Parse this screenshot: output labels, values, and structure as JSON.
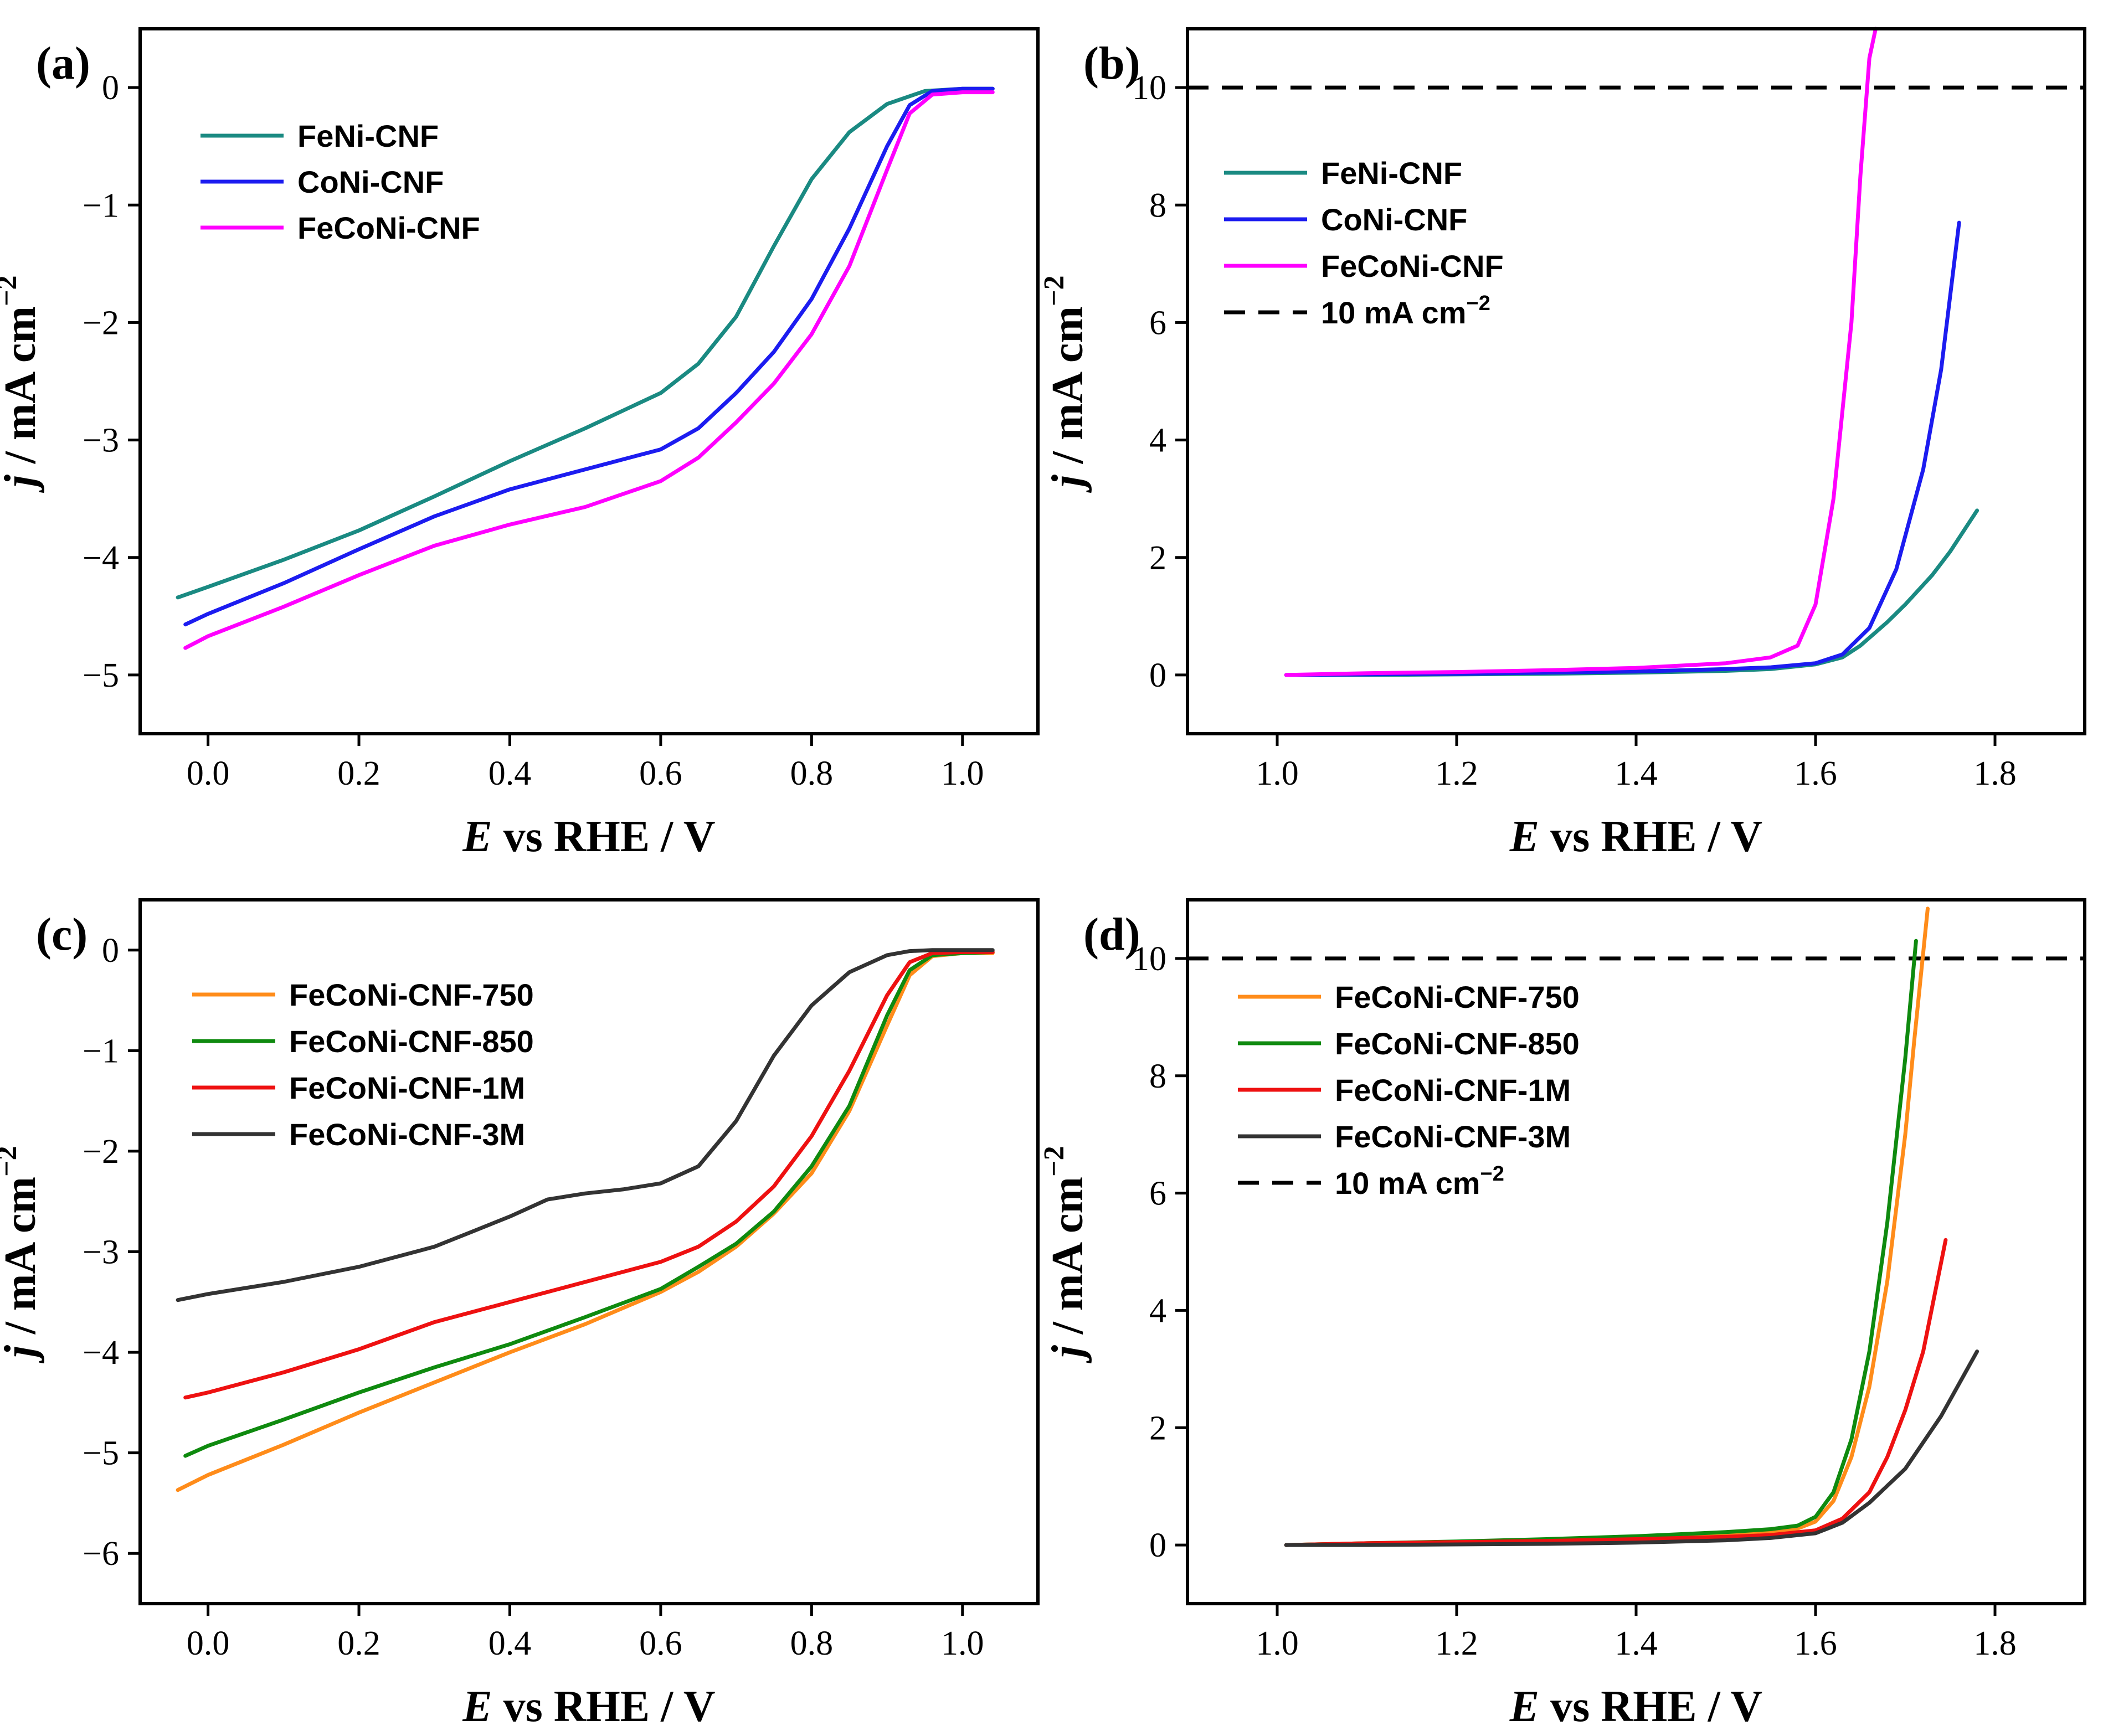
{
  "chart_data": [
    {
      "panel": "(a)",
      "type": "line",
      "xlabel": {
        "italic": "E",
        "rest": " vs RHE / V"
      },
      "ylabel": {
        "italic": "j",
        "rest": " / mA cm",
        "sup": "−2"
      },
      "xlim": [
        -0.09,
        1.1
      ],
      "ylim": [
        -5.5,
        0.5
      ],
      "xticks": [
        0.0,
        0.2,
        0.4,
        0.6,
        0.8,
        1.0
      ],
      "xtick_labels": [
        "0.0",
        "0.2",
        "0.4",
        "0.6",
        "0.8",
        "1.0"
      ],
      "yticks": [
        0,
        -1,
        -2,
        -3,
        -4,
        -5
      ],
      "ytick_labels": [
        "0",
        "−1",
        "−2",
        "−3",
        "−4",
        "−5"
      ],
      "legend_position": "top-left",
      "series": [
        {
          "name": "FeNi-CNF",
          "color": "#1a8a82",
          "x": [
            -0.04,
            0.0,
            0.1,
            0.2,
            0.3,
            0.4,
            0.5,
            0.6,
            0.65,
            0.7,
            0.75,
            0.8,
            0.85,
            0.9,
            0.95,
            1.0,
            1.04
          ],
          "y": [
            -4.34,
            -4.25,
            -4.02,
            -3.77,
            -3.48,
            -3.18,
            -2.9,
            -2.6,
            -2.35,
            -1.95,
            -1.35,
            -0.78,
            -0.38,
            -0.14,
            -0.03,
            -0.01,
            -0.01
          ]
        },
        {
          "name": "CoNi-CNF",
          "color": "#1c1cf0",
          "x": [
            -0.03,
            0.0,
            0.1,
            0.2,
            0.3,
            0.4,
            0.5,
            0.6,
            0.65,
            0.7,
            0.75,
            0.8,
            0.85,
            0.9,
            0.93,
            0.96,
            1.0,
            1.04
          ],
          "y": [
            -4.57,
            -4.48,
            -4.22,
            -3.93,
            -3.65,
            -3.42,
            -3.25,
            -3.08,
            -2.9,
            -2.6,
            -2.25,
            -1.8,
            -1.2,
            -0.5,
            -0.15,
            -0.03,
            -0.01,
            -0.01
          ]
        },
        {
          "name": "FeCoNi-CNF",
          "color": "#ff00ff",
          "x": [
            -0.03,
            0.0,
            0.1,
            0.2,
            0.3,
            0.4,
            0.5,
            0.6,
            0.65,
            0.7,
            0.75,
            0.8,
            0.85,
            0.9,
            0.93,
            0.96,
            1.0,
            1.04
          ],
          "y": [
            -4.77,
            -4.67,
            -4.42,
            -4.15,
            -3.9,
            -3.72,
            -3.57,
            -3.35,
            -3.15,
            -2.85,
            -2.52,
            -2.1,
            -1.52,
            -0.7,
            -0.22,
            -0.06,
            -0.04,
            -0.04
          ]
        }
      ]
    },
    {
      "panel": "(b)",
      "type": "line",
      "xlabel": {
        "italic": "E",
        "rest": " vs RHE / V"
      },
      "ylabel": {
        "italic": "j",
        "rest": " / mA cm",
        "sup": "−2"
      },
      "xlim": [
        0.9,
        1.9
      ],
      "ylim": [
        -1,
        11
      ],
      "xticks": [
        1.0,
        1.2,
        1.4,
        1.6,
        1.8
      ],
      "xtick_labels": [
        "1.0",
        "1.2",
        "1.4",
        "1.6",
        "1.8"
      ],
      "yticks": [
        0,
        2,
        4,
        6,
        8,
        10
      ],
      "ytick_labels": [
        "0",
        "2",
        "4",
        "6",
        "8",
        "10"
      ],
      "legend_position": "top-left",
      "reference": {
        "name": "10 mA cm",
        "sup": "−2",
        "y": 10
      },
      "series": [
        {
          "name": "FeNi-CNF",
          "color": "#1a8a82",
          "x": [
            1.01,
            1.1,
            1.2,
            1.3,
            1.4,
            1.5,
            1.55,
            1.6,
            1.63,
            1.65,
            1.68,
            1.7,
            1.73,
            1.75,
            1.78
          ],
          "y": [
            0.0,
            0.0,
            0.01,
            0.02,
            0.04,
            0.07,
            0.1,
            0.18,
            0.3,
            0.5,
            0.9,
            1.2,
            1.7,
            2.1,
            2.8
          ]
        },
        {
          "name": "CoNi-CNF",
          "color": "#1c1cf0",
          "x": [
            1.01,
            1.1,
            1.2,
            1.3,
            1.4,
            1.5,
            1.55,
            1.6,
            1.63,
            1.66,
            1.69,
            1.72,
            1.74,
            1.76
          ],
          "y": [
            0.0,
            0.01,
            0.02,
            0.04,
            0.06,
            0.1,
            0.13,
            0.2,
            0.35,
            0.8,
            1.8,
            3.5,
            5.2,
            7.7
          ]
        },
        {
          "name": "FeCoNi-CNF",
          "color": "#ff00ff",
          "x": [
            1.01,
            1.1,
            1.2,
            1.3,
            1.4,
            1.5,
            1.55,
            1.58,
            1.6,
            1.62,
            1.64,
            1.65,
            1.66,
            1.667
          ],
          "y": [
            0.0,
            0.03,
            0.05,
            0.08,
            0.12,
            0.2,
            0.3,
            0.5,
            1.2,
            3.0,
            6.0,
            8.5,
            10.5,
            11.0
          ]
        }
      ]
    },
    {
      "panel": "(c)",
      "type": "line",
      "xlabel": {
        "italic": "E",
        "rest": " vs RHE / V"
      },
      "ylabel": {
        "italic": "j",
        "rest": " / mA cm",
        "sup": "−2"
      },
      "xlim": [
        -0.09,
        1.1
      ],
      "ylim": [
        -6.5,
        0.5
      ],
      "xticks": [
        0.0,
        0.2,
        0.4,
        0.6,
        0.8,
        1.0
      ],
      "xtick_labels": [
        "0.0",
        "0.2",
        "0.4",
        "0.6",
        "0.8",
        "1.0"
      ],
      "yticks": [
        0,
        -1,
        -2,
        -3,
        -4,
        -5,
        -6
      ],
      "ytick_labels": [
        "0",
        "−1",
        "−2",
        "−3",
        "−4",
        "−5",
        "−6"
      ],
      "legend_position": "top-left",
      "series": [
        {
          "name": "FeCoNi-CNF-750",
          "color": "#ff8c1a",
          "x": [
            -0.04,
            0.0,
            0.1,
            0.2,
            0.3,
            0.4,
            0.5,
            0.6,
            0.65,
            0.7,
            0.75,
            0.8,
            0.85,
            0.9,
            0.93,
            0.96,
            1.0,
            1.04
          ],
          "y": [
            -5.37,
            -5.22,
            -4.92,
            -4.6,
            -4.3,
            -4.0,
            -3.72,
            -3.4,
            -3.2,
            -2.95,
            -2.62,
            -2.22,
            -1.6,
            -0.75,
            -0.25,
            -0.06,
            -0.03,
            -0.03
          ]
        },
        {
          "name": "FeCoNi-CNF-850",
          "color": "#0f8a0f",
          "x": [
            -0.03,
            0.0,
            0.1,
            0.2,
            0.3,
            0.4,
            0.5,
            0.6,
            0.65,
            0.7,
            0.75,
            0.8,
            0.85,
            0.9,
            0.93,
            0.96,
            1.0,
            1.04
          ],
          "y": [
            -5.03,
            -4.93,
            -4.67,
            -4.4,
            -4.15,
            -3.92,
            -3.65,
            -3.37,
            -3.15,
            -2.92,
            -2.6,
            -2.15,
            -1.55,
            -0.65,
            -0.2,
            -0.05,
            -0.03,
            -0.02
          ]
        },
        {
          "name": "FeCoNi-CNF-1M",
          "color": "#ee1111",
          "x": [
            -0.03,
            0.0,
            0.1,
            0.2,
            0.3,
            0.4,
            0.5,
            0.6,
            0.65,
            0.7,
            0.75,
            0.8,
            0.85,
            0.9,
            0.93,
            0.96,
            1.0,
            1.04
          ],
          "y": [
            -4.45,
            -4.4,
            -4.2,
            -3.97,
            -3.7,
            -3.5,
            -3.3,
            -3.1,
            -2.95,
            -2.7,
            -2.35,
            -1.85,
            -1.2,
            -0.45,
            -0.12,
            -0.03,
            -0.02,
            -0.02
          ]
        },
        {
          "name": "FeCoNi-CNF-3M",
          "color": "#333333",
          "x": [
            -0.04,
            0.0,
            0.1,
            0.2,
            0.3,
            0.35,
            0.4,
            0.45,
            0.5,
            0.55,
            0.6,
            0.65,
            0.7,
            0.75,
            0.8,
            0.85,
            0.9,
            0.93,
            0.96,
            1.0,
            1.04
          ],
          "y": [
            -3.48,
            -3.42,
            -3.3,
            -3.15,
            -2.95,
            -2.8,
            -2.65,
            -2.48,
            -2.42,
            -2.38,
            -2.32,
            -2.15,
            -1.7,
            -1.05,
            -0.55,
            -0.22,
            -0.05,
            -0.01,
            0.0,
            0.0,
            0.0
          ]
        }
      ]
    },
    {
      "panel": "(d)",
      "type": "line",
      "xlabel": {
        "italic": "E",
        "rest": " vs RHE / V"
      },
      "ylabel": {
        "italic": "j",
        "rest": " / mA cm",
        "sup": "−2"
      },
      "xlim": [
        0.9,
        1.9
      ],
      "ylim": [
        -1,
        11
      ],
      "xticks": [
        1.0,
        1.2,
        1.4,
        1.6,
        1.8
      ],
      "xtick_labels": [
        "1.0",
        "1.2",
        "1.4",
        "1.6",
        "1.8"
      ],
      "yticks": [
        0,
        2,
        4,
        6,
        8,
        10
      ],
      "ytick_labels": [
        "0",
        "2",
        "4",
        "6",
        "8",
        "10"
      ],
      "legend_position": "top-left",
      "reference": {
        "name": "10 mA cm",
        "sup": "−2",
        "y": 10
      },
      "series": [
        {
          "name": "FeCoNi-CNF-750",
          "color": "#ff8c1a",
          "x": [
            1.01,
            1.1,
            1.2,
            1.3,
            1.4,
            1.5,
            1.55,
            1.58,
            1.6,
            1.62,
            1.64,
            1.66,
            1.68,
            1.7,
            1.71,
            1.725
          ],
          "y": [
            0.0,
            0.03,
            0.05,
            0.08,
            0.12,
            0.18,
            0.22,
            0.28,
            0.4,
            0.75,
            1.5,
            2.7,
            4.5,
            7.0,
            8.6,
            10.85
          ]
        },
        {
          "name": "FeCoNi-CNF-850",
          "color": "#0f8a0f",
          "x": [
            1.01,
            1.1,
            1.2,
            1.3,
            1.4,
            1.5,
            1.55,
            1.58,
            1.6,
            1.62,
            1.64,
            1.66,
            1.68,
            1.7,
            1.712
          ],
          "y": [
            0.0,
            0.03,
            0.06,
            0.1,
            0.15,
            0.22,
            0.27,
            0.33,
            0.48,
            0.9,
            1.8,
            3.3,
            5.5,
            8.3,
            10.3
          ]
        },
        {
          "name": "FeCoNi-CNF-1M",
          "color": "#ee1111",
          "x": [
            1.01,
            1.1,
            1.2,
            1.3,
            1.4,
            1.5,
            1.55,
            1.6,
            1.63,
            1.66,
            1.68,
            1.7,
            1.72,
            1.745
          ],
          "y": [
            0.0,
            0.03,
            0.05,
            0.07,
            0.1,
            0.14,
            0.17,
            0.25,
            0.45,
            0.9,
            1.5,
            2.3,
            3.3,
            5.2
          ]
        },
        {
          "name": "FeCoNi-CNF-3M",
          "color": "#333333",
          "x": [
            1.01,
            1.1,
            1.2,
            1.3,
            1.4,
            1.5,
            1.55,
            1.6,
            1.63,
            1.66,
            1.7,
            1.74,
            1.78
          ],
          "y": [
            0.0,
            0.0,
            0.01,
            0.02,
            0.04,
            0.08,
            0.12,
            0.2,
            0.38,
            0.72,
            1.3,
            2.2,
            3.3
          ]
        }
      ]
    }
  ]
}
